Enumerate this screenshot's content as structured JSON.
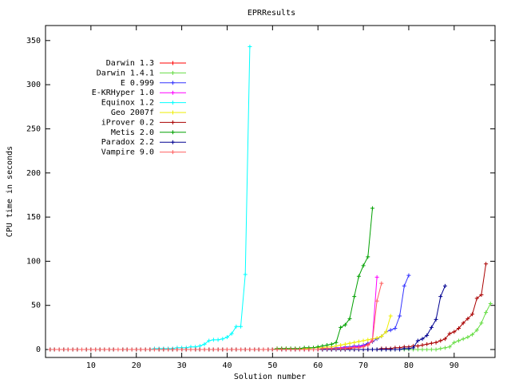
{
  "chart_data": {
    "type": "line",
    "title": "EPRResults",
    "xlabel": "Solution number",
    "ylabel": "CPU time in seconds",
    "xlim": [
      0,
      99
    ],
    "ylim": [
      -9,
      367
    ],
    "xticks": [
      10,
      20,
      30,
      40,
      50,
      60,
      70,
      80,
      90
    ],
    "yticks": [
      0,
      50,
      100,
      150,
      200,
      250,
      300,
      350
    ],
    "legend": "top-left",
    "x": [
      1,
      2,
      3,
      4,
      5,
      6,
      7,
      8,
      9,
      10,
      11,
      12,
      13,
      14,
      15,
      16,
      17,
      18,
      19,
      20,
      21,
      22,
      23,
      24,
      25,
      26,
      27,
      28,
      29,
      30,
      31,
      32,
      33,
      34,
      35,
      36,
      37,
      38,
      39,
      40,
      41,
      42,
      43,
      44,
      45,
      46,
      47,
      48,
      49,
      50,
      51,
      52,
      53,
      54,
      55,
      56,
      57,
      58,
      59,
      60,
      61,
      62,
      63,
      64,
      65,
      66,
      67,
      68,
      69,
      70,
      71,
      72,
      73,
      74,
      75,
      76,
      77,
      78,
      79,
      80,
      81,
      82,
      83,
      84,
      85,
      86,
      87,
      88,
      89,
      90,
      91,
      92,
      93,
      94,
      95,
      96,
      97,
      98
    ],
    "series": [
      {
        "name": "Darwin 1.3",
        "color": "#ff0000",
        "values": [
          0,
          0,
          0,
          0,
          0,
          0,
          0,
          0,
          0,
          0,
          0,
          0,
          0,
          0,
          0,
          0,
          0,
          0,
          0,
          0,
          0,
          0,
          0,
          0,
          0,
          0,
          0,
          0,
          0,
          0,
          0,
          0,
          0,
          0,
          0,
          0,
          0,
          0,
          0,
          0,
          0,
          0,
          0,
          0,
          0,
          0,
          0,
          0,
          0,
          0,
          0,
          0,
          0,
          0,
          0,
          0,
          0,
          0,
          0,
          0,
          0,
          0,
          0,
          0,
          1,
          1,
          1,
          2,
          3,
          4,
          6,
          9,
          null,
          null,
          null,
          null,
          null,
          null,
          null,
          null,
          null,
          null,
          null,
          null,
          null,
          null,
          null,
          null,
          null,
          null,
          null,
          null,
          null,
          null,
          null,
          null,
          null,
          null
        ]
      },
      {
        "name": "Darwin 1.4.1",
        "color": "#66dd44",
        "values": [
          0,
          0,
          0,
          0,
          0,
          0,
          0,
          0,
          0,
          0,
          0,
          0,
          0,
          0,
          0,
          0,
          0,
          0,
          0,
          0,
          0,
          0,
          0,
          0,
          0,
          0,
          0,
          0,
          0,
          0,
          0,
          0,
          0,
          0,
          0,
          0,
          0,
          0,
          0,
          0,
          0,
          0,
          0,
          0,
          0,
          0,
          0,
          0,
          0,
          0,
          0,
          0,
          0,
          0,
          0,
          0,
          0,
          0,
          0,
          0,
          0,
          0,
          0,
          0,
          0,
          0,
          0,
          0,
          0,
          0,
          0,
          0,
          0,
          0,
          0,
          0,
          0,
          0,
          0,
          0,
          0,
          0,
          0,
          0,
          0,
          0,
          1,
          2,
          3,
          8,
          10,
          12,
          14,
          17,
          22,
          30,
          42,
          52
        ]
      },
      {
        "name": "E 0.999",
        "color": "#3333ff",
        "values": [
          0,
          0,
          0,
          0,
          0,
          0,
          0,
          0,
          0,
          0,
          0,
          0,
          0,
          0,
          0,
          0,
          0,
          0,
          0,
          0,
          0,
          0,
          0,
          0,
          0,
          0,
          0,
          0,
          0,
          0,
          0,
          0,
          0,
          0,
          0,
          0,
          0,
          0,
          0,
          0,
          0,
          0,
          0,
          0,
          0,
          0,
          0,
          0,
          0,
          0,
          0,
          0,
          0,
          0,
          0,
          0,
          0,
          0,
          0,
          0,
          1,
          1,
          1,
          2,
          2,
          3,
          3,
          4,
          4,
          5,
          7,
          9,
          12,
          15,
          20,
          22,
          24,
          38,
          72,
          84,
          null,
          null,
          null,
          null,
          null,
          null,
          null,
          null,
          null,
          null,
          null,
          null,
          null,
          null,
          null,
          null,
          null,
          null
        ]
      },
      {
        "name": "E-KRHyper 1.0",
        "color": "#ff00ff",
        "values": [
          0,
          0,
          0,
          0,
          0,
          0,
          0,
          0,
          0,
          0,
          0,
          0,
          0,
          0,
          0,
          0,
          0,
          0,
          0,
          0,
          0,
          0,
          0,
          0,
          0,
          0,
          0,
          0,
          0,
          0,
          0,
          0,
          0,
          0,
          0,
          0,
          0,
          0,
          0,
          0,
          0,
          0,
          0,
          0,
          0,
          0,
          0,
          0,
          0,
          0,
          0,
          0,
          0,
          0,
          0,
          0,
          0,
          0,
          0,
          0,
          1,
          1,
          1,
          1,
          2,
          2,
          2,
          3,
          3,
          4,
          5,
          12,
          82,
          null,
          null,
          null,
          null,
          null,
          null,
          null,
          null,
          null,
          null,
          null,
          null,
          null,
          null,
          null,
          null,
          null,
          null,
          null,
          null,
          null,
          null,
          null,
          null,
          null
        ]
      },
      {
        "name": "Equinox 1.2",
        "color": "#00ffff",
        "values": [
          0,
          0,
          0,
          0,
          0,
          0,
          0,
          0,
          0,
          0,
          0,
          0,
          0,
          0,
          0,
          0,
          0,
          0,
          0,
          0,
          0,
          0,
          0,
          1,
          1,
          1,
          1,
          1,
          2,
          2,
          2,
          3,
          3,
          4,
          6,
          10,
          11,
          11,
          12,
          14,
          18,
          26,
          26,
          85,
          343,
          null,
          null,
          null,
          null,
          null,
          null,
          null,
          null,
          null,
          null,
          null,
          null,
          null,
          null,
          null,
          null,
          null,
          null,
          null,
          null,
          null,
          null,
          null,
          null,
          null,
          null,
          null,
          null,
          null,
          null,
          null,
          null,
          null,
          null,
          null,
          null,
          null,
          null,
          null,
          null,
          null,
          null,
          null,
          null,
          null,
          null,
          null,
          null,
          null,
          null,
          null,
          null,
          null
        ]
      },
      {
        "name": "Geo 2007f",
        "color": "#eeee00",
        "values": [
          0,
          0,
          0,
          0,
          0,
          0,
          0,
          0,
          0,
          0,
          0,
          0,
          0,
          0,
          0,
          0,
          0,
          0,
          0,
          0,
          0,
          0,
          0,
          0,
          0,
          0,
          0,
          0,
          0,
          0,
          0,
          0,
          0,
          0,
          0,
          0,
          0,
          0,
          0,
          0,
          0,
          0,
          0,
          0,
          0,
          0,
          0,
          0,
          0,
          0,
          1,
          1,
          1,
          1,
          1,
          1,
          1,
          1,
          2,
          2,
          2,
          3,
          3,
          4,
          5,
          6,
          7,
          8,
          9,
          10,
          11,
          12,
          13,
          15,
          20,
          38,
          null,
          null,
          null,
          null,
          null,
          null,
          null,
          null,
          null,
          null,
          null,
          null,
          null,
          null,
          null,
          null,
          null,
          null,
          null,
          null,
          null,
          null
        ]
      },
      {
        "name": "iProver 0.2",
        "color": "#aa0000",
        "values": [
          0,
          0,
          0,
          0,
          0,
          0,
          0,
          0,
          0,
          0,
          0,
          0,
          0,
          0,
          0,
          0,
          0,
          0,
          0,
          0,
          0,
          0,
          0,
          0,
          0,
          0,
          0,
          0,
          0,
          0,
          0,
          0,
          0,
          0,
          0,
          0,
          0,
          0,
          0,
          0,
          0,
          0,
          0,
          0,
          0,
          0,
          0,
          0,
          0,
          0,
          0,
          0,
          0,
          0,
          0,
          0,
          0,
          0,
          0,
          0,
          0,
          0,
          0,
          0,
          0,
          0,
          0,
          0,
          0,
          0,
          0,
          0,
          0,
          1,
          1,
          1,
          2,
          2,
          3,
          3,
          4,
          4,
          5,
          6,
          7,
          8,
          10,
          12,
          18,
          20,
          24,
          30,
          35,
          40,
          58,
          62,
          97,
          null
        ]
      },
      {
        "name": "Metis 2.0",
        "color": "#00a000",
        "values": [
          0,
          0,
          0,
          0,
          0,
          0,
          0,
          0,
          0,
          0,
          0,
          0,
          0,
          0,
          0,
          0,
          0,
          0,
          0,
          0,
          0,
          0,
          0,
          0,
          0,
          0,
          0,
          0,
          0,
          0,
          0,
          0,
          0,
          0,
          0,
          0,
          0,
          0,
          0,
          0,
          0,
          0,
          0,
          0,
          0,
          0,
          0,
          0,
          0,
          0,
          1,
          1,
          1,
          1,
          1,
          1,
          2,
          2,
          2,
          3,
          4,
          5,
          6,
          8,
          25,
          28,
          35,
          60,
          83,
          95,
          105,
          160,
          null,
          null,
          null,
          null,
          null,
          null,
          null,
          null,
          null,
          null,
          null,
          null,
          null,
          null,
          null,
          null,
          null,
          null,
          null,
          null,
          null,
          null,
          null,
          null,
          null,
          null
        ]
      },
      {
        "name": "Paradox 2.2",
        "color": "#000090",
        "values": [
          0,
          0,
          0,
          0,
          0,
          0,
          0,
          0,
          0,
          0,
          0,
          0,
          0,
          0,
          0,
          0,
          0,
          0,
          0,
          0,
          0,
          0,
          0,
          0,
          0,
          0,
          0,
          0,
          0,
          0,
          0,
          0,
          0,
          0,
          0,
          0,
          0,
          0,
          0,
          0,
          0,
          0,
          0,
          0,
          0,
          0,
          0,
          0,
          0,
          0,
          0,
          0,
          0,
          0,
          0,
          0,
          0,
          0,
          0,
          0,
          0,
          0,
          0,
          0,
          0,
          0,
          0,
          0,
          0,
          0,
          0,
          0,
          0,
          0,
          0,
          0,
          0,
          0,
          1,
          1,
          2,
          10,
          12,
          16,
          25,
          34,
          60,
          72,
          null,
          null,
          null,
          null,
          null,
          null,
          null,
          null,
          null,
          null
        ]
      },
      {
        "name": "Vampire 9.0",
        "color": "#ff6060",
        "values": [
          0,
          0,
          0,
          0,
          0,
          0,
          0,
          0,
          0,
          0,
          0,
          0,
          0,
          0,
          0,
          0,
          0,
          0,
          0,
          0,
          0,
          0,
          0,
          0,
          0,
          0,
          0,
          0,
          0,
          0,
          0,
          0,
          0,
          0,
          0,
          0,
          0,
          0,
          0,
          0,
          0,
          0,
          0,
          0,
          0,
          0,
          0,
          0,
          0,
          0,
          0,
          0,
          0,
          0,
          0,
          0,
          0,
          0,
          0,
          0,
          1,
          1,
          1,
          1,
          1,
          1,
          2,
          2,
          2,
          3,
          5,
          10,
          55,
          75,
          null,
          null,
          null,
          null,
          null,
          null,
          null,
          null,
          null,
          null,
          null,
          null,
          null,
          null,
          null,
          null,
          null,
          null,
          null,
          null,
          null,
          null,
          null,
          null
        ]
      }
    ]
  }
}
